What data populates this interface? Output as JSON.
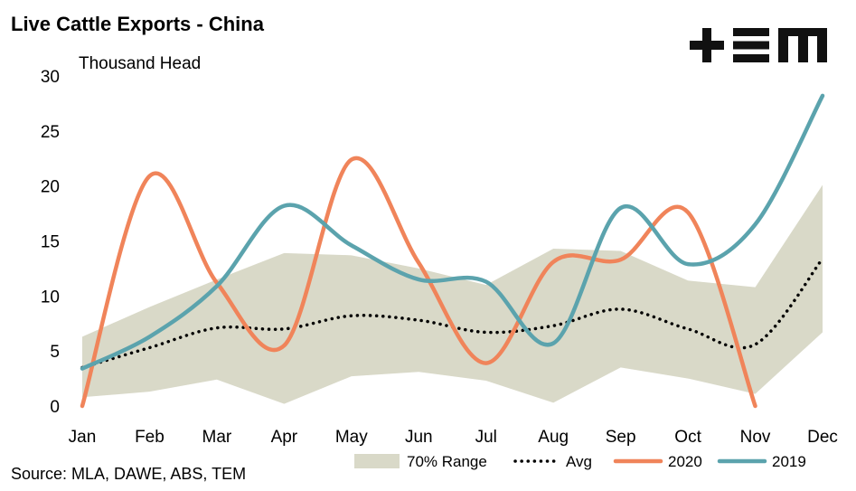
{
  "title": "Live Cattle Exports - China",
  "logo_text": "+EM",
  "source": "Source: MLA, DAWE, ABS, TEM",
  "colors": {
    "range": "#d9d9c8",
    "avg": "#000000",
    "s2020": "#f0845a",
    "s2019": "#5ba3ad"
  },
  "chart_data": {
    "type": "line",
    "ylabel": "Thousand Head",
    "ylim": [
      0,
      30
    ],
    "yticks": [
      0,
      5,
      10,
      15,
      20,
      25,
      30
    ],
    "categories": [
      "Jan",
      "Feb",
      "Mar",
      "Apr",
      "May",
      "Jun",
      "Jul",
      "Aug",
      "Sep",
      "Oct",
      "Nov",
      "Dec"
    ],
    "range": {
      "name": "70% Range",
      "low": [
        0.8,
        1.3,
        2.4,
        0.2,
        2.7,
        3.1,
        2.3,
        0.3,
        3.5,
        2.5,
        1.1,
        6.7
      ],
      "high": [
        6.3,
        9.0,
        11.5,
        13.9,
        13.7,
        12.5,
        11.0,
        14.3,
        14.1,
        11.4,
        10.8,
        20.1
      ]
    },
    "series": [
      {
        "name": "Avg",
        "style": "dotted",
        "values": [
          3.5,
          5.3,
          7.1,
          7.0,
          8.2,
          7.8,
          6.7,
          7.3,
          8.8,
          7.0,
          5.6,
          13.4
        ]
      },
      {
        "name": "2020",
        "style": "solid",
        "values": [
          0,
          20.9,
          11.2,
          5.5,
          22.4,
          13.0,
          3.9,
          13.1,
          13.3,
          17.6,
          0,
          null
        ]
      },
      {
        "name": "2019",
        "style": "solid",
        "values": [
          3.4,
          6.3,
          10.9,
          18.2,
          14.6,
          11.5,
          11.3,
          5.7,
          18.0,
          12.9,
          16.5,
          28.2
        ]
      }
    ],
    "legend": {
      "placement": "bottom",
      "items": [
        {
          "key": "range",
          "label": "70% Range"
        },
        {
          "key": "avg",
          "label": "Avg"
        },
        {
          "key": "s2020",
          "label": "2020"
        },
        {
          "key": "s2019",
          "label": "2019"
        }
      ]
    },
    "grid": false
  }
}
